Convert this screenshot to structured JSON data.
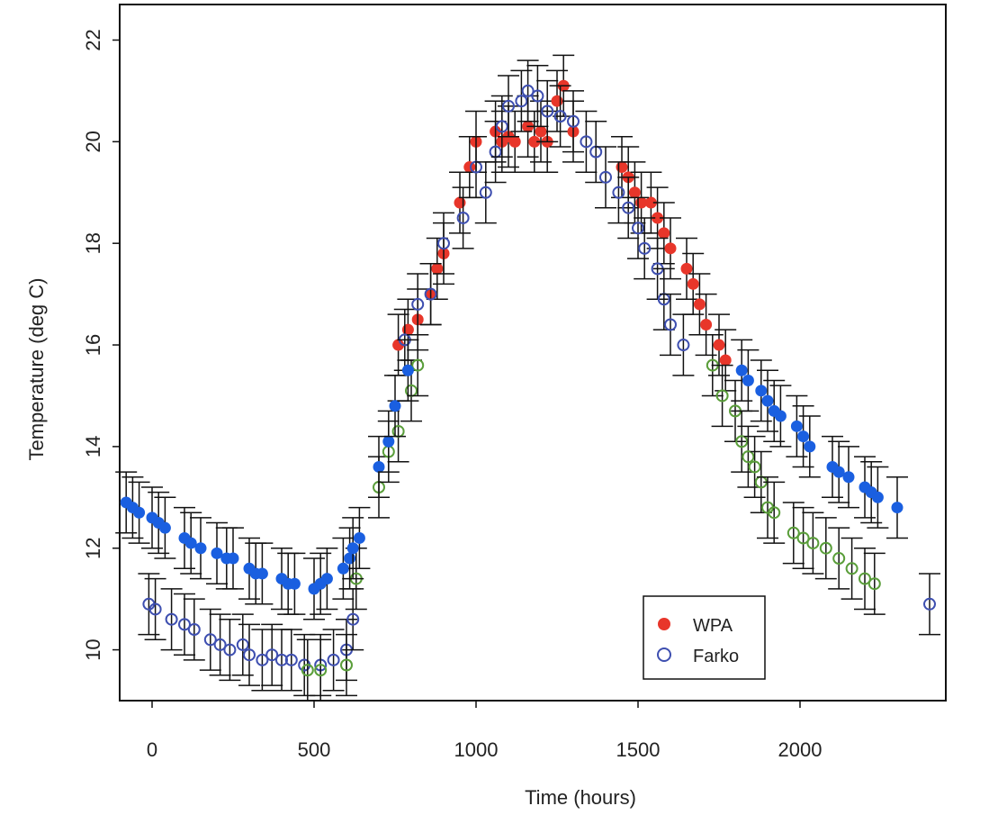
{
  "chart_data": {
    "type": "scatter",
    "title": "",
    "xlabel": "Time (hours)",
    "ylabel": "Temperature (deg C)",
    "xlim": [
      -100,
      2450
    ],
    "ylim": [
      9.0,
      22.7
    ],
    "x_ticks": [
      0,
      500,
      1000,
      1500,
      2000
    ],
    "y_ticks": [
      10,
      12,
      14,
      16,
      18,
      20,
      22
    ],
    "grid": false,
    "legend_position": "bottom-right",
    "error_bar_halfwidth": 0.6,
    "series": [
      {
        "name": "WPA",
        "marker": "filled-circle",
        "color": "#e8362a",
        "x": [
          760,
          790,
          820,
          860,
          880,
          900,
          950,
          980,
          1000,
          1060,
          1080,
          1100,
          1120,
          1160,
          1180,
          1200,
          1220,
          1250,
          1270,
          1300,
          1450,
          1470,
          1490,
          1510,
          1540,
          1560,
          1580,
          1600,
          1650,
          1670,
          1690,
          1710,
          1750,
          1770
        ],
        "y": [
          16.0,
          16.3,
          16.5,
          17.0,
          17.5,
          17.8,
          18.8,
          19.5,
          20.0,
          20.2,
          20.0,
          20.1,
          20.0,
          20.3,
          20.0,
          20.2,
          20.0,
          20.8,
          21.1,
          20.2,
          19.5,
          19.3,
          19.0,
          18.8,
          18.8,
          18.5,
          18.2,
          17.9,
          17.5,
          17.2,
          16.8,
          16.4,
          16.0,
          15.7
        ]
      },
      {
        "name": "Farko",
        "marker": "open-circle",
        "color": "#3e4fb0",
        "x": [
          -10,
          10,
          60,
          100,
          130,
          180,
          210,
          240,
          280,
          300,
          340,
          370,
          400,
          430,
          470,
          520,
          560,
          600,
          620,
          780,
          820,
          860,
          900,
          960,
          1000,
          1030,
          1060,
          1080,
          1100,
          1140,
          1160,
          1190,
          1220,
          1260,
          1300,
          1340,
          1370,
          1400,
          1440,
          1470,
          1500,
          1520,
          1560,
          1580,
          1600,
          1640,
          2400
        ],
        "y": [
          10.9,
          10.8,
          10.6,
          10.5,
          10.4,
          10.2,
          10.1,
          10.0,
          10.1,
          9.9,
          9.8,
          9.9,
          9.8,
          9.8,
          9.7,
          9.7,
          9.8,
          10.0,
          10.6,
          16.1,
          16.8,
          17.0,
          18.0,
          18.5,
          19.5,
          19.0,
          19.8,
          20.3,
          20.7,
          20.8,
          21.0,
          20.9,
          20.6,
          20.5,
          20.4,
          20.0,
          19.8,
          19.3,
          19.0,
          18.7,
          18.3,
          17.9,
          17.5,
          16.9,
          16.4,
          16.0,
          10.9
        ]
      },
      {
        "name": "",
        "marker": "open-circle",
        "color": "#5a9e3a",
        "x": [
          480,
          520,
          600,
          630,
          700,
          730,
          760,
          800,
          820,
          1730,
          1760,
          1800,
          1820,
          1840,
          1860,
          1880,
          1900,
          1920,
          1980,
          2010,
          2040,
          2080,
          2120,
          2160,
          2200,
          2230
        ],
        "y": [
          9.6,
          9.6,
          9.7,
          11.4,
          13.2,
          13.9,
          14.3,
          15.1,
          15.6,
          15.6,
          15.0,
          14.7,
          14.1,
          13.8,
          13.6,
          13.3,
          12.8,
          12.7,
          12.3,
          12.2,
          12.1,
          12.0,
          11.8,
          11.6,
          11.4,
          11.3
        ]
      },
      {
        "name": "",
        "marker": "filled-circle",
        "color": "#1a5fe0",
        "x": [
          -80,
          -60,
          -40,
          0,
          20,
          40,
          100,
          120,
          150,
          200,
          230,
          250,
          300,
          320,
          340,
          400,
          420,
          440,
          500,
          520,
          540,
          590,
          610,
          620,
          640,
          700,
          730,
          750,
          790,
          1820,
          1840,
          1880,
          1900,
          1920,
          1940,
          1990,
          2010,
          2030,
          2100,
          2120,
          2150,
          2200,
          2220,
          2240,
          2300
        ],
        "y": [
          12.9,
          12.8,
          12.7,
          12.6,
          12.5,
          12.4,
          12.2,
          12.1,
          12.0,
          11.9,
          11.8,
          11.8,
          11.6,
          11.5,
          11.5,
          11.4,
          11.3,
          11.3,
          11.2,
          11.3,
          11.4,
          11.6,
          11.8,
          12.0,
          12.2,
          13.6,
          14.1,
          14.8,
          15.5,
          15.5,
          15.3,
          15.1,
          14.9,
          14.7,
          14.6,
          14.4,
          14.2,
          14.0,
          13.6,
          13.5,
          13.4,
          13.2,
          13.1,
          13.0,
          12.8
        ]
      }
    ]
  }
}
